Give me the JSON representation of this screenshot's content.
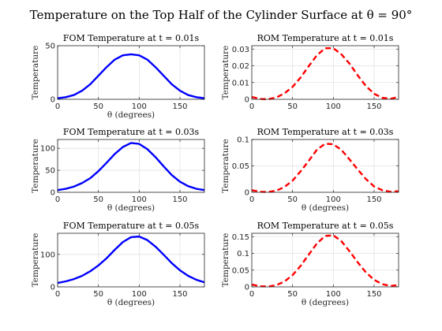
{
  "title": "Temperature on the Top Half of the Cylinder Surface at θ = 90°",
  "chart_data": [
    {
      "type": "line",
      "title": "FOM Temperature at t = 0.01s",
      "xlabel": "θ (degrees)",
      "ylabel": "Temperature",
      "xlim": [
        0,
        180
      ],
      "ylim": [
        0,
        50
      ],
      "xticks": [
        0,
        50,
        100,
        150
      ],
      "yticks": [
        0,
        50
      ],
      "ytick_labels": [
        "0",
        "50"
      ],
      "grid": true,
      "series": [
        {
          "style": "solid",
          "color": "#0000ff",
          "x": [
            0,
            10,
            20,
            30,
            40,
            50,
            60,
            70,
            80,
            90,
            100,
            110,
            120,
            130,
            140,
            150,
            160,
            170,
            180
          ],
          "y": [
            1,
            2,
            4,
            8,
            14,
            22,
            30,
            37,
            41,
            42,
            41,
            37,
            30,
            22,
            14,
            8,
            4,
            2,
            1
          ]
        }
      ]
    },
    {
      "type": "line",
      "title": "ROM Temperature at t = 0.01s",
      "xlabel": "",
      "ylabel": "Temperature",
      "xlim": [
        0,
        180
      ],
      "ylim": [
        0,
        0.032
      ],
      "xticks": [
        0,
        50,
        100,
        150
      ],
      "yticks": [
        0,
        0.01,
        0.02,
        0.03
      ],
      "ytick_labels": [
        "0",
        "0.01",
        "0.02",
        "0.03"
      ],
      "grid": true,
      "series": [
        {
          "style": "dashed",
          "color": "#ff0000",
          "x": [
            0,
            10,
            20,
            30,
            40,
            50,
            60,
            70,
            80,
            90,
            100,
            110,
            120,
            130,
            140,
            150,
            160,
            170,
            180
          ],
          "y": [
            0.0014,
            0.0002,
            0.0,
            0.0011,
            0.0035,
            0.0074,
            0.0131,
            0.0199,
            0.0264,
            0.0305,
            0.0305,
            0.0268,
            0.0212,
            0.0142,
            0.0079,
            0.0033,
            0.0009,
            0.0003,
            0.0014
          ]
        }
      ]
    },
    {
      "type": "line",
      "title": "FOM Temperature at t = 0.03s",
      "xlabel": "θ (degrees)",
      "ylabel": "Temperature",
      "xlim": [
        0,
        180
      ],
      "ylim": [
        0,
        120
      ],
      "xticks": [
        0,
        50,
        100,
        150
      ],
      "yticks": [
        0,
        50,
        100
      ],
      "ytick_labels": [
        "0",
        "50",
        "100"
      ],
      "grid": true,
      "series": [
        {
          "style": "solid",
          "color": "#0000ff",
          "x": [
            0,
            10,
            20,
            30,
            40,
            50,
            60,
            70,
            80,
            90,
            100,
            110,
            120,
            130,
            140,
            150,
            160,
            170,
            180
          ],
          "y": [
            5,
            8,
            13,
            21,
            32,
            48,
            67,
            87,
            103,
            112,
            110,
            98,
            80,
            59,
            39,
            24,
            14,
            8,
            5
          ]
        }
      ]
    },
    {
      "type": "line",
      "title": "ROM Temperature at t = 0.03s",
      "xlabel": "θ (degrees)",
      "ylabel": "Temperature",
      "xlim": [
        0,
        180
      ],
      "ylim": [
        0,
        0.1
      ],
      "xticks": [
        0,
        50,
        100,
        150
      ],
      "yticks": [
        0,
        0.05,
        0.1
      ],
      "ytick_labels": [
        "0",
        "0.05",
        "0.1"
      ],
      "grid": true,
      "series": [
        {
          "style": "dashed",
          "color": "#ff0000",
          "x": [
            0,
            10,
            20,
            30,
            40,
            50,
            60,
            70,
            80,
            90,
            100,
            110,
            120,
            130,
            140,
            150,
            160,
            170,
            180
          ],
          "y": [
            0.004,
            0.001,
            0.0005,
            0.003,
            0.01,
            0.022,
            0.04,
            0.06,
            0.081,
            0.092,
            0.091,
            0.08,
            0.062,
            0.043,
            0.025,
            0.011,
            0.004,
            0.001,
            0.002
          ]
        }
      ]
    },
    {
      "type": "line",
      "title": "FOM Temperature at t = 0.05s",
      "xlabel": "θ (degrees)",
      "ylabel": "Temperature",
      "xlim": [
        0,
        180
      ],
      "ylim": [
        0,
        165
      ],
      "xticks": [
        0,
        50,
        100,
        150
      ],
      "yticks": [
        0,
        100
      ],
      "ytick_labels": [
        "0",
        "100"
      ],
      "grid": true,
      "series": [
        {
          "style": "solid",
          "color": "#0000ff",
          "x": [
            0,
            10,
            20,
            30,
            40,
            50,
            60,
            70,
            80,
            90,
            100,
            110,
            120,
            130,
            140,
            150,
            160,
            170,
            180
          ],
          "y": [
            12,
            17,
            24,
            34,
            48,
            66,
            88,
            114,
            138,
            153,
            155,
            144,
            124,
            99,
            73,
            51,
            34,
            22,
            14
          ]
        }
      ]
    },
    {
      "type": "line",
      "title": "ROM Temperature at t = 0.05s",
      "xlabel": "θ (degrees)",
      "ylabel": "Temperature",
      "xlim": [
        0,
        180
      ],
      "ylim": [
        0,
        0.16
      ],
      "xticks": [
        0,
        50,
        100,
        150
      ],
      "yticks": [
        0,
        0.05,
        0.1,
        0.15
      ],
      "ytick_labels": [
        "0",
        "0.05",
        "0.1",
        "0.15"
      ],
      "grid": true,
      "series": [
        {
          "style": "dashed",
          "color": "#ff0000",
          "x": [
            0,
            10,
            20,
            30,
            40,
            50,
            60,
            70,
            80,
            90,
            100,
            110,
            120,
            130,
            140,
            150,
            160,
            170,
            180
          ],
          "y": [
            0.007,
            0.002,
            0.001,
            0.005,
            0.016,
            0.035,
            0.063,
            0.097,
            0.13,
            0.152,
            0.154,
            0.136,
            0.106,
            0.073,
            0.043,
            0.021,
            0.008,
            0.003,
            0.005
          ]
        }
      ]
    }
  ]
}
